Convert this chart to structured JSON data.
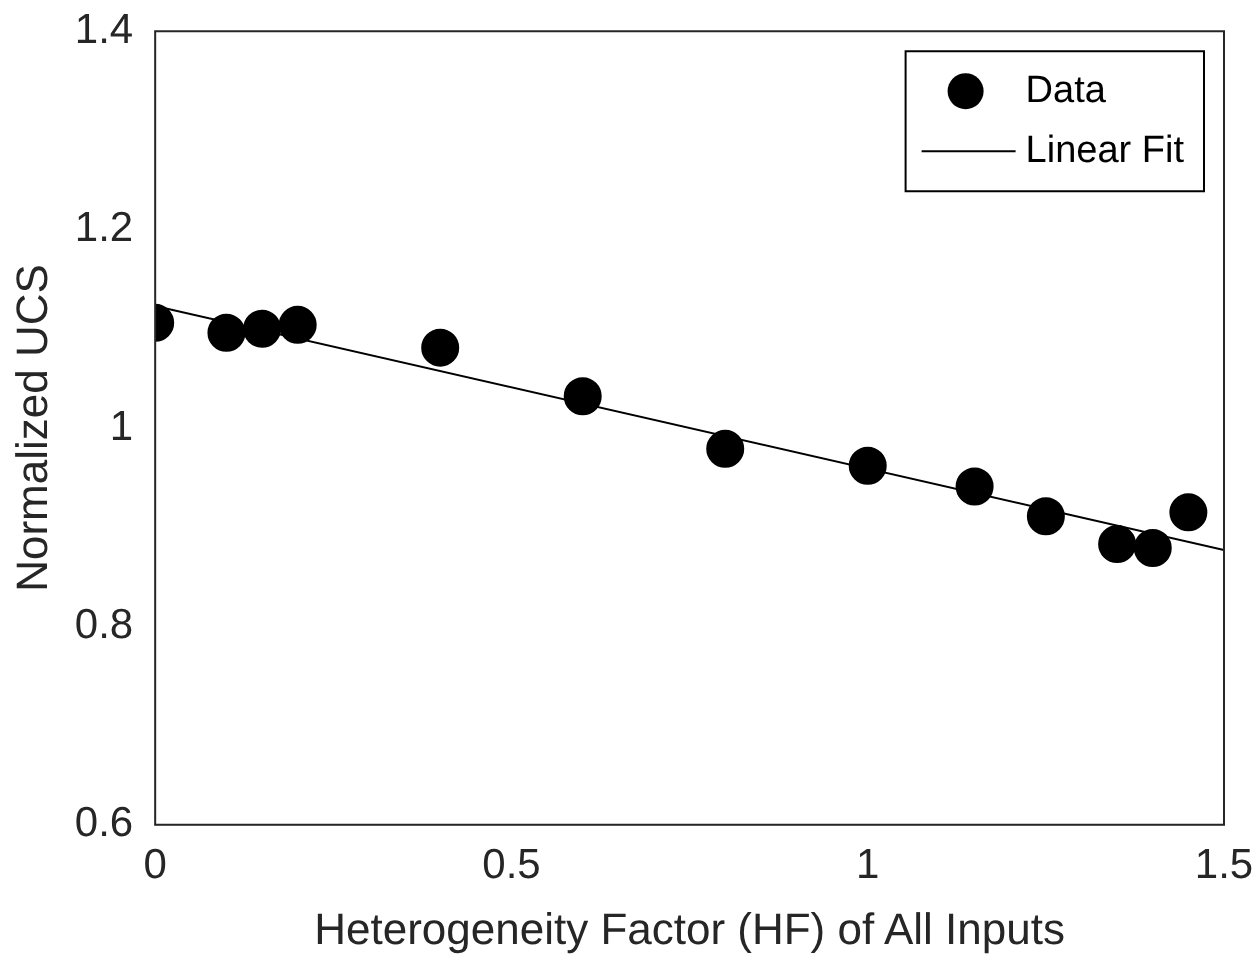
{
  "chart_data": {
    "type": "scatter",
    "xlabel": "Heterogeneity Factor (HF) of All Inputs",
    "ylabel": "Normalized UCS",
    "xlim": [
      0,
      1.5
    ],
    "xticks": [
      0,
      0.5,
      1,
      1.5
    ],
    "ylim": [
      0.6,
      1.4
    ],
    "yticks": [
      0.6,
      0.8,
      1,
      1.2,
      1.4
    ],
    "grid": false,
    "legend": "top right",
    "series": [
      {
        "name": "Data",
        "marker": "circle",
        "color": "#000000",
        "x": [
          0,
          0.1,
          0.15,
          0.2,
          0.4,
          0.6,
          0.8,
          1,
          1.15,
          1.25,
          1.35,
          1.4,
          1.45
        ],
        "values": [
          1.106,
          1.096,
          1.1,
          1.104,
          1.081,
          1.032,
          0.979,
          0.962,
          0.941,
          0.911,
          0.883,
          0.879,
          0.915
        ]
      },
      {
        "name": "Linear Fit",
        "type": "line",
        "color": "#000000",
        "x": [
          0,
          1.5
        ],
        "values": [
          1.123,
          0.877
        ],
        "marker": "none",
        "line_style": "solid"
      }
    ]
  }
}
